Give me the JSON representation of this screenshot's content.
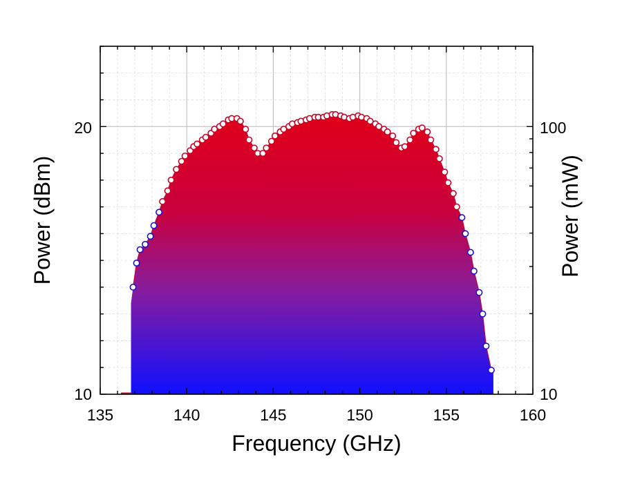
{
  "chart_data": {
    "type": "area",
    "title": "",
    "xlabel": "Frequency (GHz)",
    "ylabel_left": "Power (dBm)",
    "ylabel_right": "Power (mW)",
    "xlim": [
      135,
      160
    ],
    "ylim_dBm": [
      10,
      23
    ],
    "x_ticks": [
      135,
      140,
      145,
      150,
      155,
      160
    ],
    "x_tick_labels": [
      "135",
      "140",
      "145",
      "150",
      "155",
      "160"
    ],
    "y_left_ticks": [
      10,
      20
    ],
    "y_left_tick_labels": [
      "10",
      "20"
    ],
    "y_right_ticks_mW": [
      10,
      100
    ],
    "y_right_tick_labels": [
      "10",
      "100"
    ],
    "grid": true,
    "legend": "none",
    "colors": {
      "top": "#dd0022",
      "bottom": "#1010ff",
      "marker_red": "#cc0022",
      "marker_blue": "#1a10d0",
      "grid": "#b8b8b8"
    },
    "series": [
      {
        "x": [
          136.9,
          137.1,
          137.3,
          137.6,
          137.9,
          138.1,
          138.4,
          138.6,
          138.9,
          139.1,
          139.4,
          139.7,
          139.9,
          140.2,
          140.4,
          140.6,
          140.9,
          141.1,
          141.4,
          141.6,
          141.9,
          142.1,
          142.4,
          142.6,
          142.9,
          143.1,
          143.4,
          143.6,
          143.9,
          144.1,
          144.4,
          144.6,
          144.9,
          145.1,
          145.4,
          145.6,
          145.9,
          146.1,
          146.4,
          146.6,
          146.9,
          147.1,
          147.4,
          147.6,
          147.9,
          148.1,
          148.4,
          148.6,
          148.9,
          149.1,
          149.4,
          149.6,
          149.9,
          150.1,
          150.4,
          150.6,
          150.9,
          151.1,
          151.4,
          151.6,
          151.9,
          152.1,
          152.4,
          152.6,
          152.9,
          153.1,
          153.4,
          153.6,
          153.9,
          154.1,
          154.4,
          154.6,
          154.9,
          155.1,
          155.4,
          155.6,
          155.9,
          156.1,
          156.4,
          156.6,
          156.9,
          157.1,
          157.3,
          157.6
        ],
        "y": [
          14.0,
          14.9,
          15.4,
          15.6,
          15.9,
          16.3,
          16.8,
          17.2,
          17.6,
          18.0,
          18.4,
          18.7,
          18.9,
          19.1,
          19.25,
          19.35,
          19.5,
          19.6,
          19.75,
          19.9,
          20.0,
          20.1,
          20.25,
          20.3,
          20.3,
          20.2,
          19.9,
          19.5,
          19.2,
          19.0,
          19.0,
          19.2,
          19.45,
          19.65,
          19.8,
          19.9,
          20.0,
          20.1,
          20.15,
          20.2,
          20.25,
          20.3,
          20.35,
          20.35,
          20.35,
          20.4,
          20.45,
          20.45,
          20.4,
          20.35,
          20.3,
          20.35,
          20.4,
          20.35,
          20.3,
          20.2,
          20.1,
          20.0,
          19.9,
          19.8,
          19.65,
          19.4,
          19.2,
          19.25,
          19.5,
          19.75,
          19.9,
          19.95,
          19.8,
          19.5,
          19.15,
          18.8,
          18.3,
          17.9,
          17.5,
          17.0,
          16.6,
          16.0,
          15.3,
          14.6,
          13.8,
          13.0,
          11.8,
          10.9
        ],
        "marker_colors_by_level": "red-high-blue-low"
      }
    ],
    "base_segment": {
      "x_from": 136.2,
      "x_to": 136.8,
      "y": 10
    }
  }
}
